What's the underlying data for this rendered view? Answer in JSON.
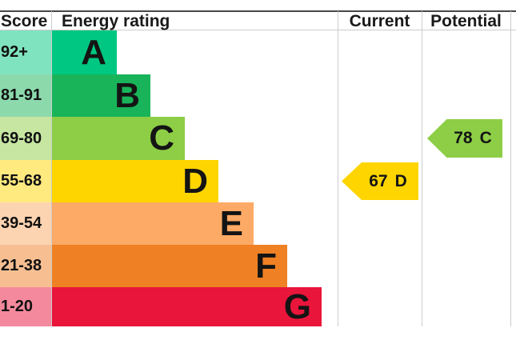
{
  "header": {
    "score": "Score",
    "energy_rating": "Energy rating",
    "current": "Current",
    "potential": "Potential"
  },
  "chart_data": {
    "type": "bar",
    "subtype": "epc-energy-rating",
    "title": "",
    "bands": [
      {
        "letter": "A",
        "score_range": "92+",
        "color": "#00c781",
        "tint": "#80e3c0"
      },
      {
        "letter": "B",
        "score_range": "81-91",
        "color": "#19b459",
        "tint": "#8cd9ac"
      },
      {
        "letter": "C",
        "score_range": "69-80",
        "color": "#8dce46",
        "tint": "#c6e6a2"
      },
      {
        "letter": "D",
        "score_range": "55-68",
        "color": "#ffd500",
        "tint": "#ffea80"
      },
      {
        "letter": "E",
        "score_range": "39-54",
        "color": "#fcaa65",
        "tint": "#fdd4b2"
      },
      {
        "letter": "F",
        "score_range": "21-38",
        "color": "#ef8023",
        "tint": "#f7bf91"
      },
      {
        "letter": "G",
        "score_range": "1-20",
        "color": "#e9153b",
        "tint": "#f4899d"
      }
    ],
    "markers": {
      "current": {
        "score": "67",
        "band": "D",
        "color": "#ffd500"
      },
      "potential": {
        "score": "78",
        "band": "C",
        "color": "#8dce46"
      }
    },
    "grid_color": "#cccccc",
    "top_border_color": "#474747",
    "legend_position": "none"
  }
}
